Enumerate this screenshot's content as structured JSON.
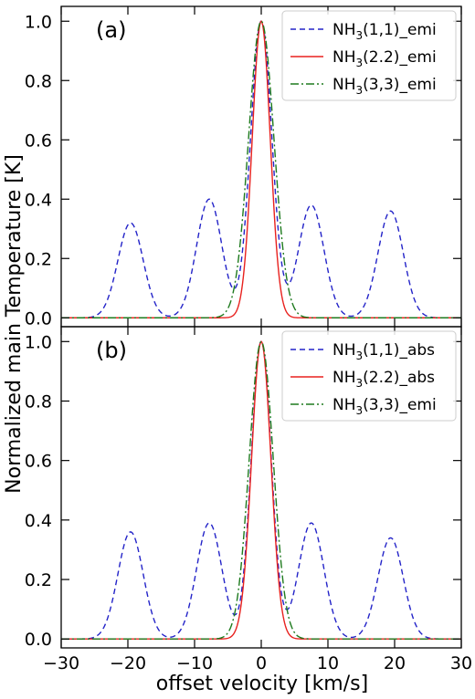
{
  "chart_data": {
    "type": "line",
    "xlabel": "offset velocity [km/s]",
    "ylabel": "Normalized main Temperature [K]",
    "xlim": [
      -30,
      30
    ],
    "x_ticks": [
      -30,
      -20,
      -10,
      0,
      10,
      20,
      30
    ],
    "y_ticks": [
      0.0,
      0.2,
      0.4,
      0.6,
      0.8,
      1.0
    ],
    "ylim": [
      -0.03,
      1.05
    ],
    "grid": false,
    "legend_position": "top-right",
    "panels": [
      {
        "label": "(a)",
        "series": [
          {
            "name_parts": [
              "NH",
              "3",
              "(1,1)_emi"
            ],
            "color": "#2323c8",
            "dash": "dashed",
            "components": [
              {
                "center": -19.6,
                "amplitude": 0.32,
                "sigma": 1.9
              },
              {
                "center": -7.8,
                "amplitude": 0.4,
                "sigma": 1.9
              },
              {
                "center": 0.0,
                "amplitude": 1.0,
                "sigma": 1.6
              },
              {
                "center": 7.5,
                "amplitude": 0.38,
                "sigma": 1.9
              },
              {
                "center": 19.4,
                "amplitude": 0.36,
                "sigma": 1.9
              }
            ]
          },
          {
            "name_parts": [
              "NH",
              "3",
              "(2.2)_emi"
            ],
            "color": "#e8211e",
            "dash": "solid",
            "components": [
              {
                "center": 0.0,
                "amplitude": 1.0,
                "sigma": 1.35
              }
            ]
          },
          {
            "name_parts": [
              "NH",
              "3",
              "(3,3)_emi"
            ],
            "color": "#1e7a1e",
            "dash": "dashdot",
            "components": [
              {
                "center": 0.0,
                "amplitude": 1.0,
                "sigma": 1.9
              }
            ]
          }
        ]
      },
      {
        "label": "(b)",
        "series": [
          {
            "name_parts": [
              "NH",
              "3",
              "(1,1)_abs"
            ],
            "color": "#2323c8",
            "dash": "dashed",
            "components": [
              {
                "center": -19.6,
                "amplitude": 0.36,
                "sigma": 1.9
              },
              {
                "center": -7.8,
                "amplitude": 0.39,
                "sigma": 1.9
              },
              {
                "center": 0.0,
                "amplitude": 1.0,
                "sigma": 1.5
              },
              {
                "center": 7.5,
                "amplitude": 0.39,
                "sigma": 1.9
              },
              {
                "center": 19.4,
                "amplitude": 0.34,
                "sigma": 1.9
              }
            ]
          },
          {
            "name_parts": [
              "NH",
              "3",
              "(2.2)_abs"
            ],
            "color": "#e8211e",
            "dash": "solid",
            "components": [
              {
                "center": 0.0,
                "amplitude": 1.0,
                "sigma": 1.45
              }
            ]
          },
          {
            "name_parts": [
              "NH",
              "3",
              "(3,3)_emi"
            ],
            "color": "#1e7a1e",
            "dash": "dashdot",
            "components": [
              {
                "center": 0.0,
                "amplitude": 1.0,
                "sigma": 1.8
              }
            ]
          }
        ]
      }
    ]
  }
}
